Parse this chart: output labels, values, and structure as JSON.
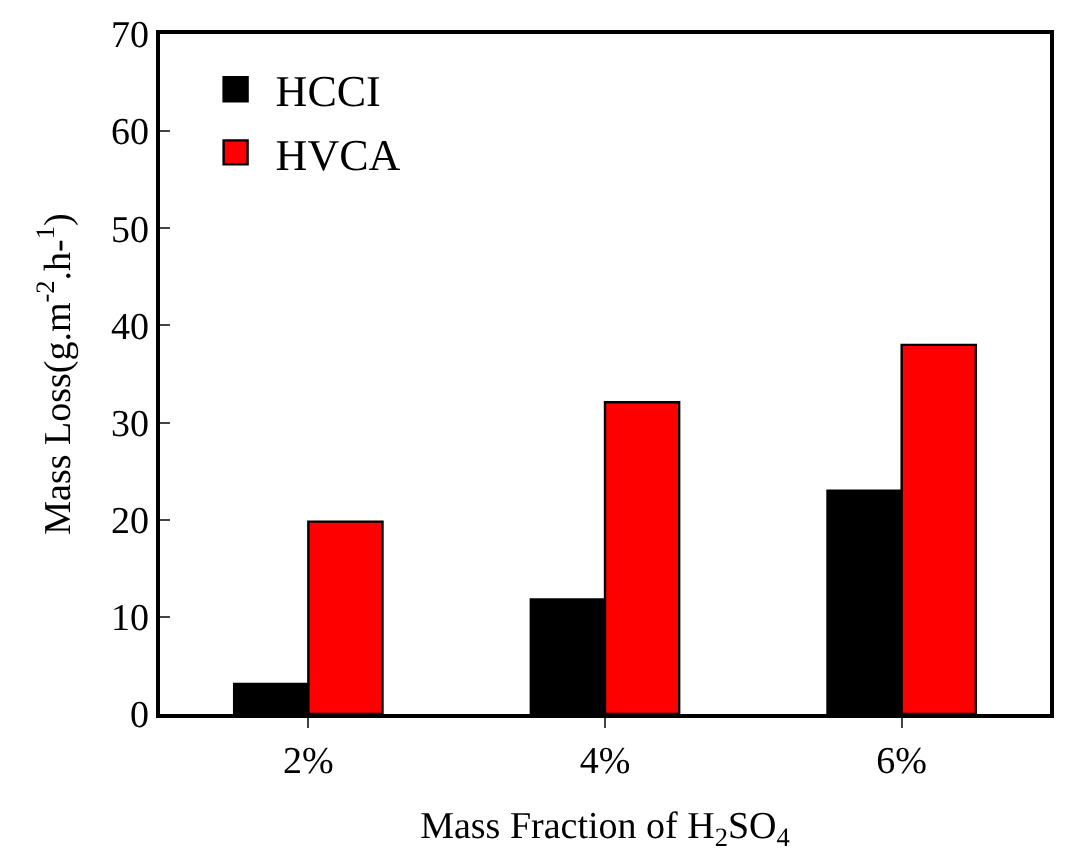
{
  "chart_data": {
    "type": "bar",
    "xlabel": "Mass Fraction of H$_{2}$SO$_{4}$",
    "ylabel": "Mass Loss(g.m$^{-2}$.h-$^{1}$)",
    "categories": [
      "2%",
      "4%",
      "6%"
    ],
    "series": [
      {
        "name": "HCCI",
        "color": "#000000",
        "values": [
          3.1,
          11.8,
          23.0
        ]
      },
      {
        "name": "HVCA",
        "color": "#ff0000",
        "values": [
          19.8,
          32.1,
          38.0
        ]
      }
    ],
    "ylim": [
      0,
      70
    ],
    "yticks": [
      0,
      10,
      20,
      30,
      40,
      50,
      60,
      70
    ],
    "legend": "top left"
  }
}
